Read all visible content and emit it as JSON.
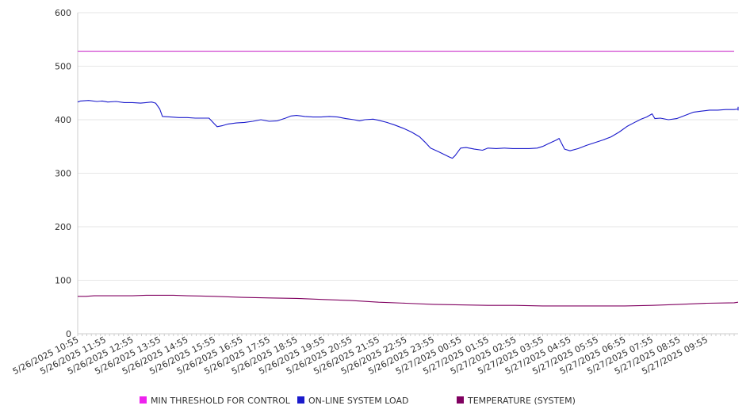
{
  "chart_data": {
    "type": "line",
    "title": "",
    "xlabel": "",
    "ylabel": "",
    "ylim": [
      0,
      600
    ],
    "yticks": [
      "0",
      "100",
      "200",
      "300",
      "400",
      "500",
      "600"
    ],
    "grid": "horizontal",
    "legend_position": "bottom",
    "x_labels": [
      "5/26/2025 10:55",
      "5/26/2025 11:55",
      "5/26/2025 12:55",
      "5/26/2025 13:55",
      "5/26/2025 14:55",
      "5/26/2025 15:55",
      "5/26/2025 16:55",
      "5/26/2025 17:55",
      "5/26/2025 18:55",
      "5/26/2025 19:55",
      "5/26/2025 20:55",
      "5/26/2025 21:55",
      "5/26/2025 22:55",
      "5/26/2025 23:55",
      "5/27/2025 00:55",
      "5/27/2025 01:55",
      "5/27/2025 02:55",
      "5/27/2025 03:55",
      "5/27/2025 04:55",
      "5/27/2025 05:55",
      "5/27/2025 06:55",
      "5/27/2025 07:55",
      "5/27/2025 08:55",
      "5/27/2025 09:55"
    ],
    "series": [
      {
        "name": "MIN THRESHOLD FOR CONTROL",
        "color": "#cc33cc",
        "points": [
          [
            0,
            528
          ],
          [
            24,
            528
          ]
        ]
      },
      {
        "name": "ON-LINE SYSTEM LOAD",
        "color": "#1a1acc",
        "points": [
          [
            0,
            433
          ],
          [
            0.1,
            435
          ],
          [
            0.4,
            436
          ],
          [
            0.7,
            434
          ],
          [
            0.9,
            435
          ],
          [
            1.1,
            433
          ],
          [
            1.4,
            434
          ],
          [
            1.7,
            432
          ],
          [
            2.0,
            432
          ],
          [
            2.3,
            431
          ],
          [
            2.5,
            432
          ],
          [
            2.7,
            433
          ],
          [
            2.85,
            431
          ],
          [
            3.0,
            420
          ],
          [
            3.1,
            406
          ],
          [
            3.4,
            405
          ],
          [
            3.7,
            404
          ],
          [
            4.0,
            404
          ],
          [
            4.3,
            403
          ],
          [
            4.6,
            403
          ],
          [
            4.8,
            403
          ],
          [
            5.0,
            392
          ],
          [
            5.1,
            387
          ],
          [
            5.3,
            389
          ],
          [
            5.5,
            392
          ],
          [
            5.8,
            394
          ],
          [
            6.1,
            395
          ],
          [
            6.4,
            397
          ],
          [
            6.7,
            400
          ],
          [
            7.0,
            397
          ],
          [
            7.3,
            398
          ],
          [
            7.6,
            403
          ],
          [
            7.8,
            407
          ],
          [
            8.0,
            408
          ],
          [
            8.3,
            406
          ],
          [
            8.6,
            405
          ],
          [
            8.9,
            405
          ],
          [
            9.2,
            406
          ],
          [
            9.5,
            405
          ],
          [
            9.8,
            402
          ],
          [
            10.1,
            400
          ],
          [
            10.3,
            398
          ],
          [
            10.5,
            400
          ],
          [
            10.8,
            401
          ],
          [
            11.0,
            399
          ],
          [
            11.3,
            395
          ],
          [
            11.6,
            390
          ],
          [
            11.9,
            384
          ],
          [
            12.2,
            377
          ],
          [
            12.5,
            368
          ],
          [
            12.7,
            358
          ],
          [
            12.9,
            347
          ],
          [
            13.2,
            340
          ],
          [
            13.4,
            335
          ],
          [
            13.6,
            330
          ],
          [
            13.7,
            328
          ],
          [
            13.8,
            333
          ],
          [
            14.0,
            347
          ],
          [
            14.2,
            348
          ],
          [
            14.5,
            345
          ],
          [
            14.8,
            343
          ],
          [
            15.0,
            347
          ],
          [
            15.3,
            346
          ],
          [
            15.6,
            347
          ],
          [
            15.9,
            346
          ],
          [
            16.2,
            346
          ],
          [
            16.5,
            346
          ],
          [
            16.8,
            347
          ],
          [
            17.0,
            350
          ],
          [
            17.2,
            355
          ],
          [
            17.5,
            362
          ],
          [
            17.6,
            365
          ],
          [
            17.8,
            345
          ],
          [
            18.0,
            342
          ],
          [
            18.3,
            346
          ],
          [
            18.6,
            352
          ],
          [
            18.9,
            357
          ],
          [
            19.2,
            362
          ],
          [
            19.5,
            368
          ],
          [
            19.8,
            377
          ],
          [
            20.1,
            388
          ],
          [
            20.4,
            396
          ],
          [
            20.6,
            401
          ],
          [
            20.8,
            405
          ],
          [
            21.0,
            411
          ],
          [
            21.1,
            402
          ],
          [
            21.3,
            403
          ],
          [
            21.6,
            400
          ],
          [
            21.9,
            402
          ],
          [
            22.2,
            408
          ],
          [
            22.5,
            414
          ],
          [
            22.8,
            416
          ],
          [
            23.1,
            418
          ],
          [
            23.4,
            418
          ],
          [
            23.7,
            419
          ],
          [
            24.0,
            419
          ],
          [
            24.3,
            420
          ],
          [
            24.6,
            419
          ],
          [
            24.9,
            418
          ],
          [
            25.2,
            419
          ],
          [
            25.5,
            421
          ],
          [
            25.8,
            419
          ],
          [
            26.0,
            422
          ],
          [
            26.1,
            424
          ]
        ]
      },
      {
        "name": "TEMPERATURE (SYSTEM)",
        "color": "#800060",
        "points": [
          [
            0,
            70
          ],
          [
            0.3,
            70
          ],
          [
            0.6,
            71
          ],
          [
            1.0,
            71
          ],
          [
            1.5,
            71
          ],
          [
            2.0,
            71
          ],
          [
            2.5,
            72
          ],
          [
            3.0,
            72
          ],
          [
            3.5,
            72
          ],
          [
            4.0,
            71
          ],
          [
            5.0,
            70
          ],
          [
            6.0,
            68
          ],
          [
            7.0,
            67
          ],
          [
            8.0,
            66
          ],
          [
            9.0,
            64
          ],
          [
            10.0,
            62
          ],
          [
            11.0,
            59
          ],
          [
            12.0,
            57
          ],
          [
            13.0,
            55
          ],
          [
            14.0,
            54
          ],
          [
            15.0,
            53
          ],
          [
            16.0,
            53
          ],
          [
            17.0,
            52
          ],
          [
            18.0,
            52
          ],
          [
            19.0,
            52
          ],
          [
            20.0,
            52
          ],
          [
            21.0,
            53
          ],
          [
            22.0,
            55
          ],
          [
            23.0,
            57
          ],
          [
            24.0,
            58
          ],
          [
            25.0,
            59
          ],
          [
            26.1,
            59
          ]
        ]
      }
    ]
  }
}
